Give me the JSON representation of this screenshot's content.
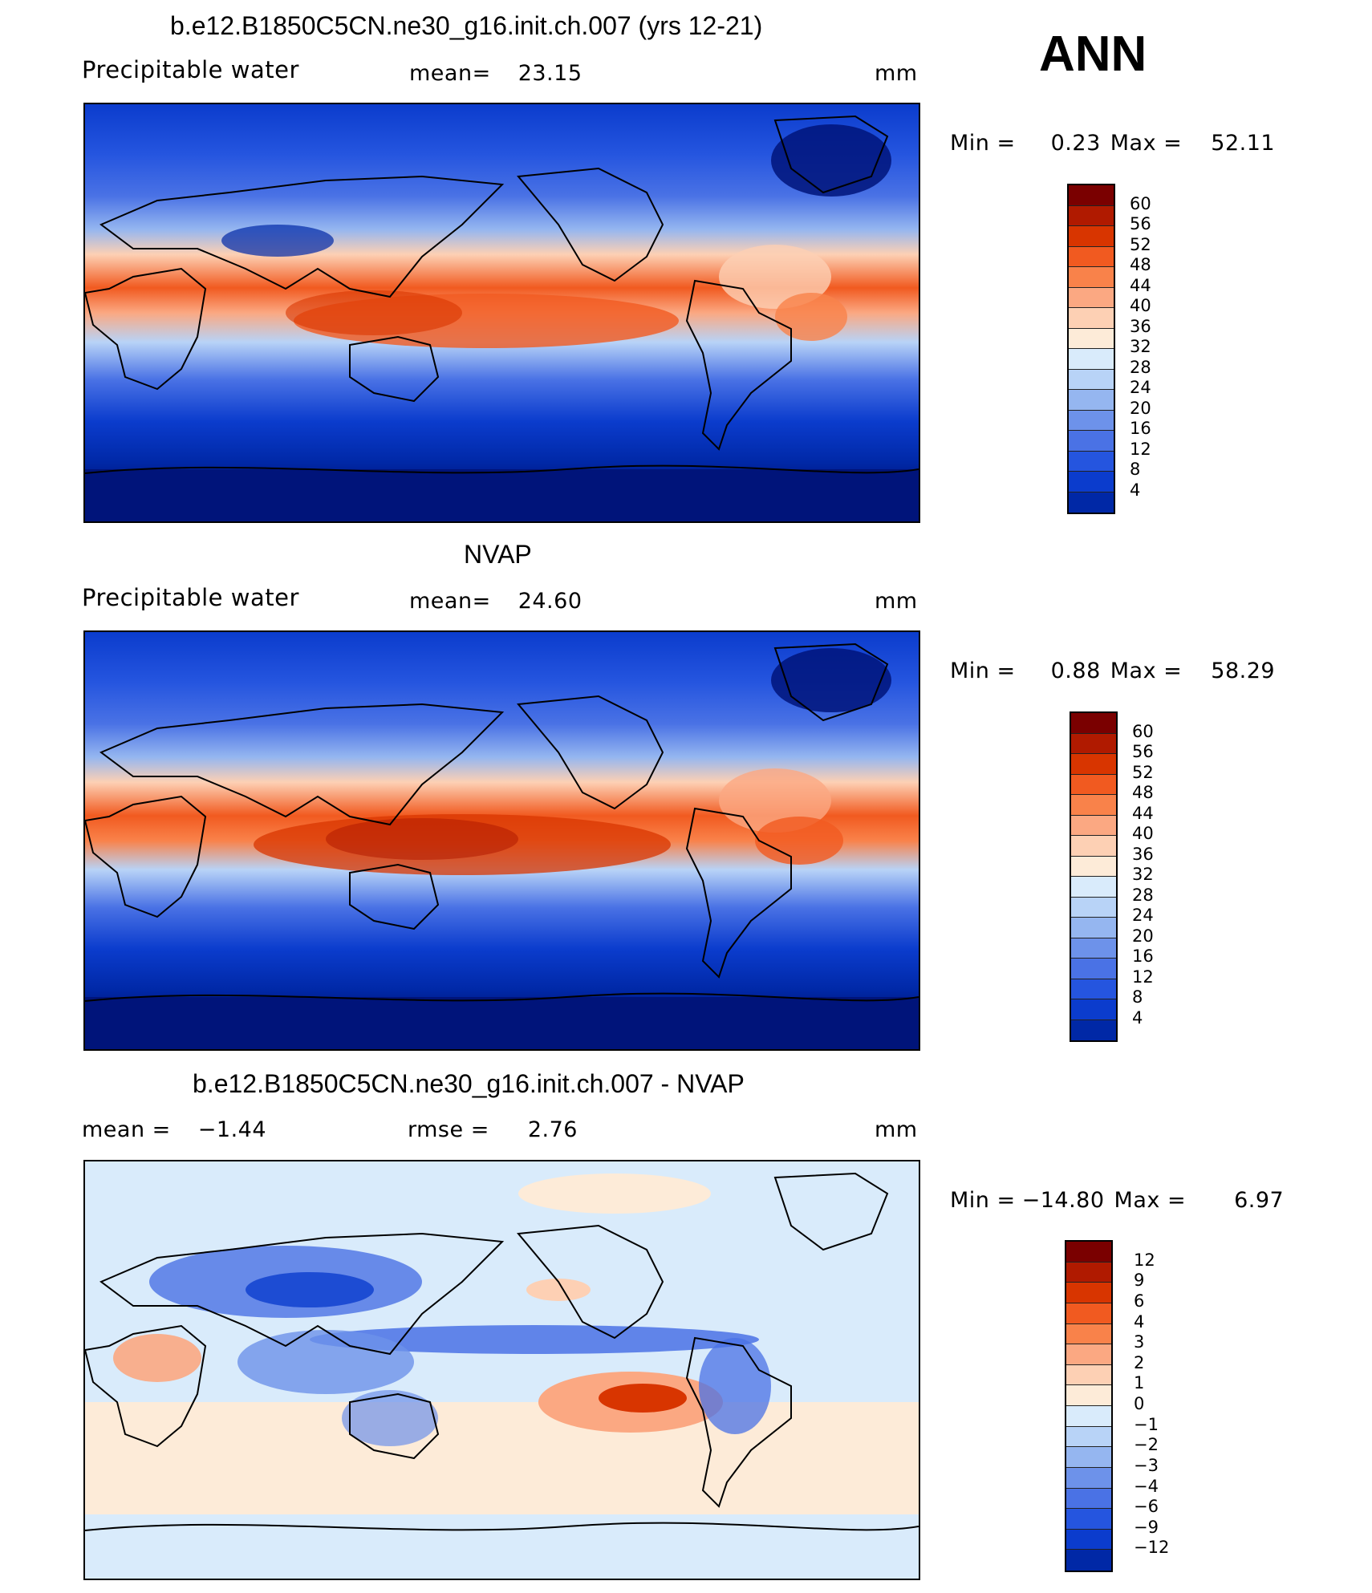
{
  "header": {
    "panel1_title": "b.e12.B1850C5CN.ne30_g16.init.ch.007 (yrs 12-21)",
    "season": "ANN"
  },
  "panel1": {
    "variable": "Precipitable water",
    "mean_label": "mean=",
    "mean_value": "23.15",
    "units": "mm",
    "min_label": "Min =",
    "min_value": "0.23",
    "max_label": "Max =",
    "max_value": "52.11",
    "colorbar_labels": [
      "60",
      "56",
      "52",
      "48",
      "44",
      "40",
      "36",
      "32",
      "28",
      "24",
      "20",
      "16",
      "12",
      "8",
      "4"
    ]
  },
  "panel2": {
    "title": "NVAP",
    "variable": "Precipitable water",
    "mean_label": "mean=",
    "mean_value": "24.60",
    "units": "mm",
    "min_label": "Min =",
    "min_value": "0.88",
    "max_label": "Max =",
    "max_value": "58.29",
    "colorbar_labels": [
      "60",
      "56",
      "52",
      "48",
      "44",
      "40",
      "36",
      "32",
      "28",
      "24",
      "20",
      "16",
      "12",
      "8",
      "4"
    ]
  },
  "panel3": {
    "title": "b.e12.B1850C5CN.ne30_g16.init.ch.007 - NVAP",
    "mean_label": "mean =",
    "mean_value": "−1.44",
    "rmse_label": "rmse =",
    "rmse_value": "2.76",
    "units": "mm",
    "min_label": "Min =",
    "min_value": "−14.80",
    "max_label": "Max =",
    "max_value": "6.97",
    "colorbar_labels": [
      "12",
      "9",
      "6",
      "4",
      "3",
      "2",
      "1",
      "0",
      "−1",
      "−2",
      "−3",
      "−4",
      "−6",
      "−9",
      "−12"
    ]
  },
  "colors": {
    "abs_scale": [
      "#7a0000",
      "#b01a00",
      "#d83500",
      "#f15a20",
      "#f9824a",
      "#fba882",
      "#fdd0b4",
      "#fdebd8",
      "#d9ebfb",
      "#b8d3f7",
      "#95b6f0",
      "#6d92ea",
      "#4a72e5",
      "#2555df",
      "#0b3ccd",
      "#0028a6",
      "#00147a"
    ],
    "diff_scale": [
      "#7a0000",
      "#b01a00",
      "#d83500",
      "#f15a20",
      "#f9824a",
      "#fba882",
      "#fdd0b4",
      "#fdebd8",
      "#d9ebfb",
      "#b8d3f7",
      "#95b6f0",
      "#6d92ea",
      "#4a72e5",
      "#2555df",
      "#0b3ccd",
      "#0028a6",
      "#00147a"
    ]
  }
}
